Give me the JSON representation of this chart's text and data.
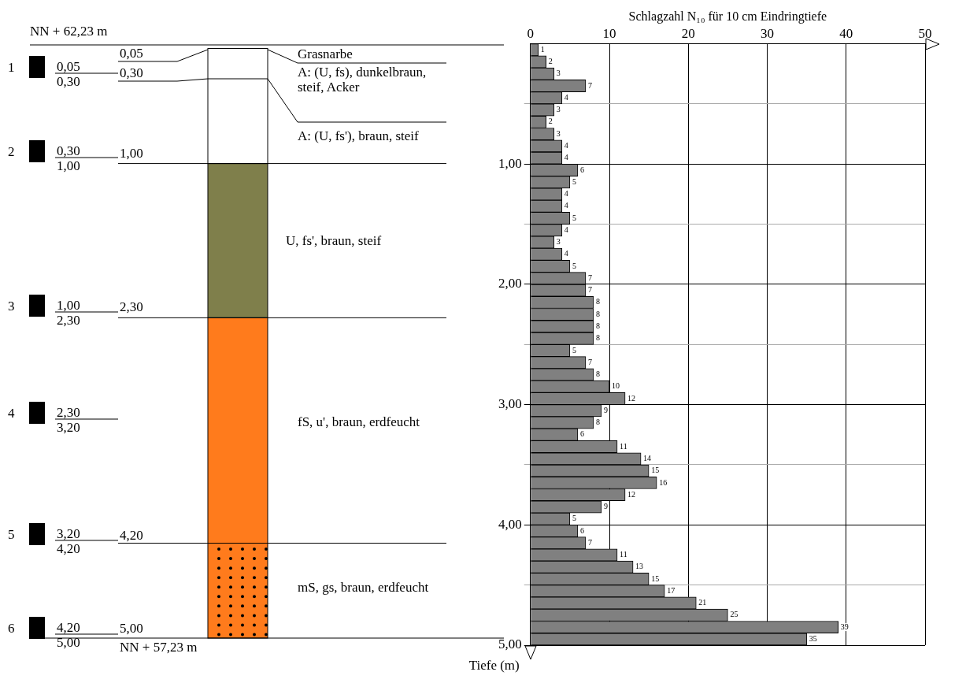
{
  "chart_data": [
    {
      "type": "other",
      "annotations": [
        "NN + 62,23 m",
        "NN + 57,23 m",
        "1",
        "2",
        "3",
        "4",
        "5",
        "6",
        "0,05",
        "0,30",
        "0,30",
        "1,00",
        "1,00",
        "2,30",
        "2,30",
        "3,20",
        "3,20",
        "4,20",
        "4,20",
        "5,00",
        "0,05",
        "0,30",
        "1,00",
        "2,30",
        "4,20",
        "5,00",
        "Grasnarbe",
        "A: (U, fs), dunkelbraun, steif, Acker",
        "A: (U, fs'), braun, steif",
        "U, fs', braun, steif",
        "fS, u', braun, erdfeucht",
        "mS, gs, braun, erdfeucht"
      ]
    },
    {
      "type": "bar",
      "orientation": "horizontal",
      "xlabel": "Schlagzahl N₁₀ für 10 cm Eindringtiefe",
      "ylabel": "Tiefe (m)",
      "color": "#808080",
      "grid": true,
      "data_labels": true,
      "x": [
        0.05,
        0.15,
        0.25,
        0.35,
        0.45,
        0.55,
        0.65,
        0.75,
        0.85,
        0.95,
        1.05,
        1.15,
        1.25,
        1.35,
        1.45,
        1.55,
        1.65,
        1.75,
        1.85,
        1.95,
        2.05,
        2.15,
        2.25,
        2.35,
        2.45,
        2.55,
        2.65,
        2.75,
        2.85,
        2.95,
        3.05,
        3.15,
        3.25,
        3.35,
        3.45,
        3.55,
        3.65,
        3.75,
        3.85,
        3.95,
        4.05,
        4.15,
        4.25,
        4.35,
        4.45,
        4.55,
        4.65,
        4.75,
        4.85,
        4.95
      ],
      "values": [
        1,
        2,
        3,
        7,
        4,
        3,
        2,
        3,
        4,
        4,
        6,
        5,
        4,
        4,
        5,
        4,
        3,
        4,
        5,
        7,
        7,
        8,
        8,
        8,
        8,
        5,
        7,
        8,
        10,
        12,
        9,
        8,
        6,
        11,
        14,
        15,
        16,
        12,
        9,
        5,
        6,
        7,
        11,
        13,
        15,
        17,
        21,
        25,
        39,
        35
      ],
      "xlim": [
        0,
        50
      ],
      "xticks": [
        0,
        10,
        20,
        30,
        40,
        50
      ],
      "ylim": [
        5,
        0
      ],
      "yticks": [
        {
          "value": 0.5,
          "label": null
        },
        {
          "value": 1,
          "label": "1,00"
        },
        {
          "value": 1.5,
          "label": null
        },
        {
          "value": 2,
          "label": "2,00"
        },
        {
          "value": 2.5,
          "label": null
        },
        {
          "value": 3,
          "label": "3,00"
        },
        {
          "value": 3.5,
          "label": null
        },
        {
          "value": 4,
          "label": "4,00"
        },
        {
          "value": 4.5,
          "label": null
        },
        {
          "value": 5,
          "label": "5,00"
        }
      ]
    }
  ]
}
